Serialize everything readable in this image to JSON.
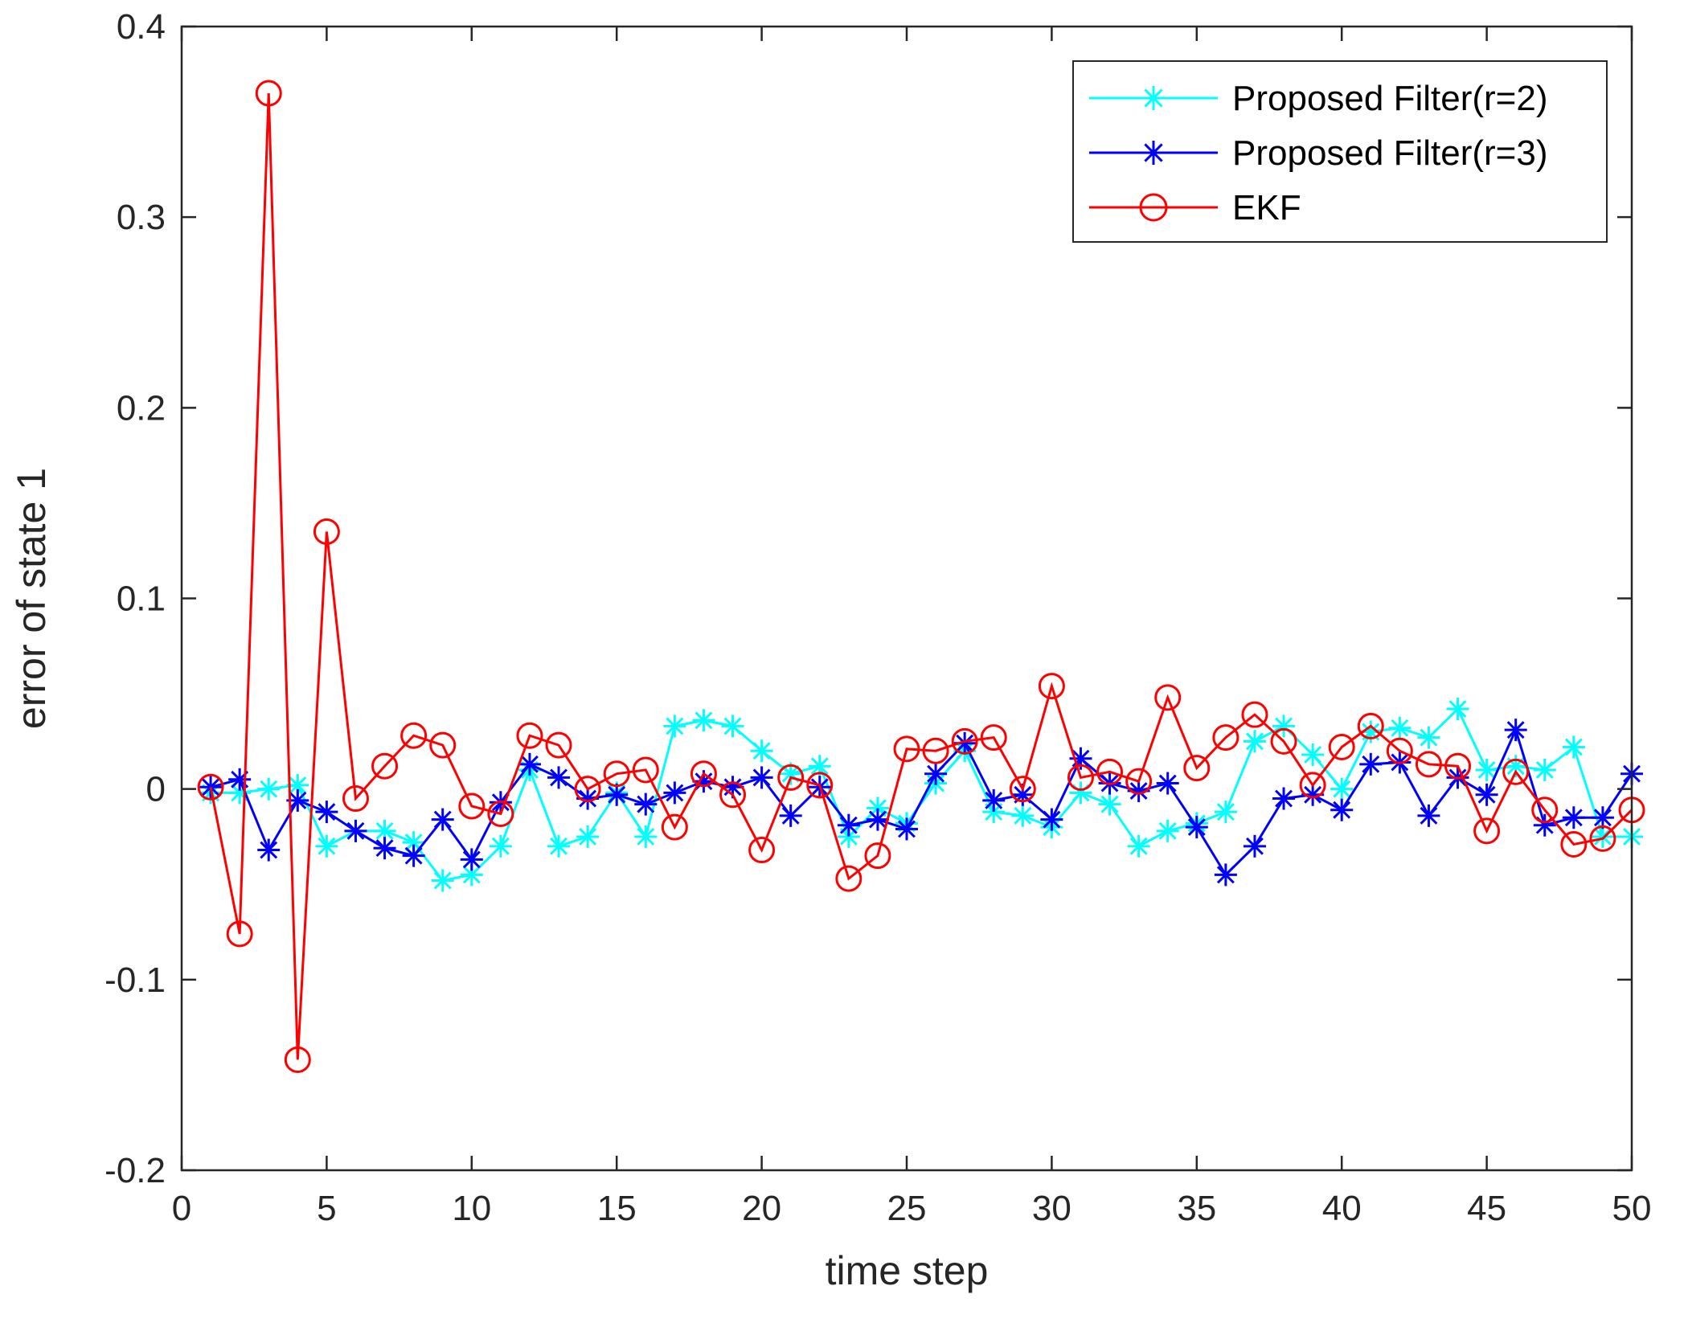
{
  "chart_data": {
    "type": "line",
    "title": "",
    "xlabel": "time step",
    "ylabel": "error of state 1",
    "xlim": [
      0,
      50
    ],
    "ylim": [
      -0.2,
      0.4
    ],
    "xticks": [
      0,
      5,
      10,
      15,
      20,
      25,
      30,
      35,
      40,
      45,
      50
    ],
    "yticks": [
      -0.2,
      -0.1,
      0,
      0.1,
      0.2,
      0.3,
      0.4
    ],
    "xtick_labels": [
      "0",
      "5",
      "10",
      "15",
      "20",
      "25",
      "30",
      "35",
      "40",
      "45",
      "50"
    ],
    "ytick_labels": [
      "-0.2",
      "-0.1",
      "0",
      "0.1",
      "0.2",
      "0.3",
      "0.4"
    ],
    "legend_position": "top-right",
    "x": [
      1,
      2,
      3,
      4,
      5,
      6,
      7,
      8,
      9,
      10,
      11,
      12,
      13,
      14,
      15,
      16,
      17,
      18,
      19,
      20,
      21,
      22,
      23,
      24,
      25,
      26,
      27,
      28,
      29,
      30,
      31,
      32,
      33,
      34,
      35,
      36,
      37,
      38,
      39,
      40,
      41,
      42,
      43,
      44,
      45,
      46,
      47,
      48,
      49,
      50
    ],
    "series": [
      {
        "name": "Proposed Filter(r=2)",
        "color": "#00FFFF",
        "marker": "asterisk",
        "values": [
          -0.002,
          -0.002,
          0,
          0.002,
          -0.03,
          -0.022,
          -0.022,
          -0.028,
          -0.048,
          -0.045,
          -0.03,
          0.01,
          -0.03,
          -0.025,
          -0.002,
          -0.025,
          0.033,
          0.036,
          0.033,
          0.02,
          0.008,
          0.012,
          -0.025,
          -0.01,
          -0.018,
          0.003,
          0.02,
          -0.012,
          -0.014,
          -0.02,
          -0.002,
          -0.008,
          -0.03,
          -0.022,
          -0.018,
          -0.012,
          0.025,
          0.033,
          0.018,
          0,
          0.03,
          0.032,
          0.027,
          0.042,
          0.01,
          0.012,
          0.01,
          0.022,
          -0.025,
          -0.025
        ]
      },
      {
        "name": "Proposed Filter(r=3)",
        "color": "#0000FF",
        "marker": "asterisk",
        "values": [
          0.001,
          0.005,
          -0.032,
          -0.006,
          -0.012,
          -0.022,
          -0.031,
          -0.035,
          -0.016,
          -0.037,
          -0.007,
          0.013,
          0.006,
          -0.005,
          -0.003,
          -0.008,
          -0.002,
          0.004,
          0.001,
          0.006,
          -0.014,
          0.001,
          -0.019,
          -0.016,
          -0.021,
          0.008,
          0.024,
          -0.006,
          -0.003,
          -0.016,
          0.016,
          0.003,
          -0.001,
          0.003,
          -0.02,
          -0.045,
          -0.03,
          -0.005,
          -0.003,
          -0.011,
          0.013,
          0.014,
          -0.014,
          0.006,
          -0.003,
          0.031,
          -0.019,
          -0.015,
          -0.015,
          0.008
        ]
      },
      {
        "name": "EKF",
        "color": "#FF0000",
        "marker": "circle",
        "values": [
          0.001,
          -0.076,
          0.365,
          -0.142,
          0.135,
          -0.005,
          0.012,
          0.028,
          0.023,
          -0.009,
          -0.013,
          0.028,
          0.023,
          0,
          0.008,
          0.01,
          -0.02,
          0.008,
          -0.003,
          -0.032,
          0.006,
          0.002,
          -0.047,
          -0.035,
          0.021,
          0.02,
          0.025,
          0.027,
          0,
          0.054,
          0.006,
          0.009,
          0.004,
          0.048,
          0.011,
          0.027,
          0.039,
          0.025,
          0.002,
          0.022,
          0.033,
          0.02,
          0.013,
          0.012,
          -0.022,
          0.009,
          -0.011,
          -0.029,
          -0.026,
          -0.011
        ]
      }
    ]
  }
}
